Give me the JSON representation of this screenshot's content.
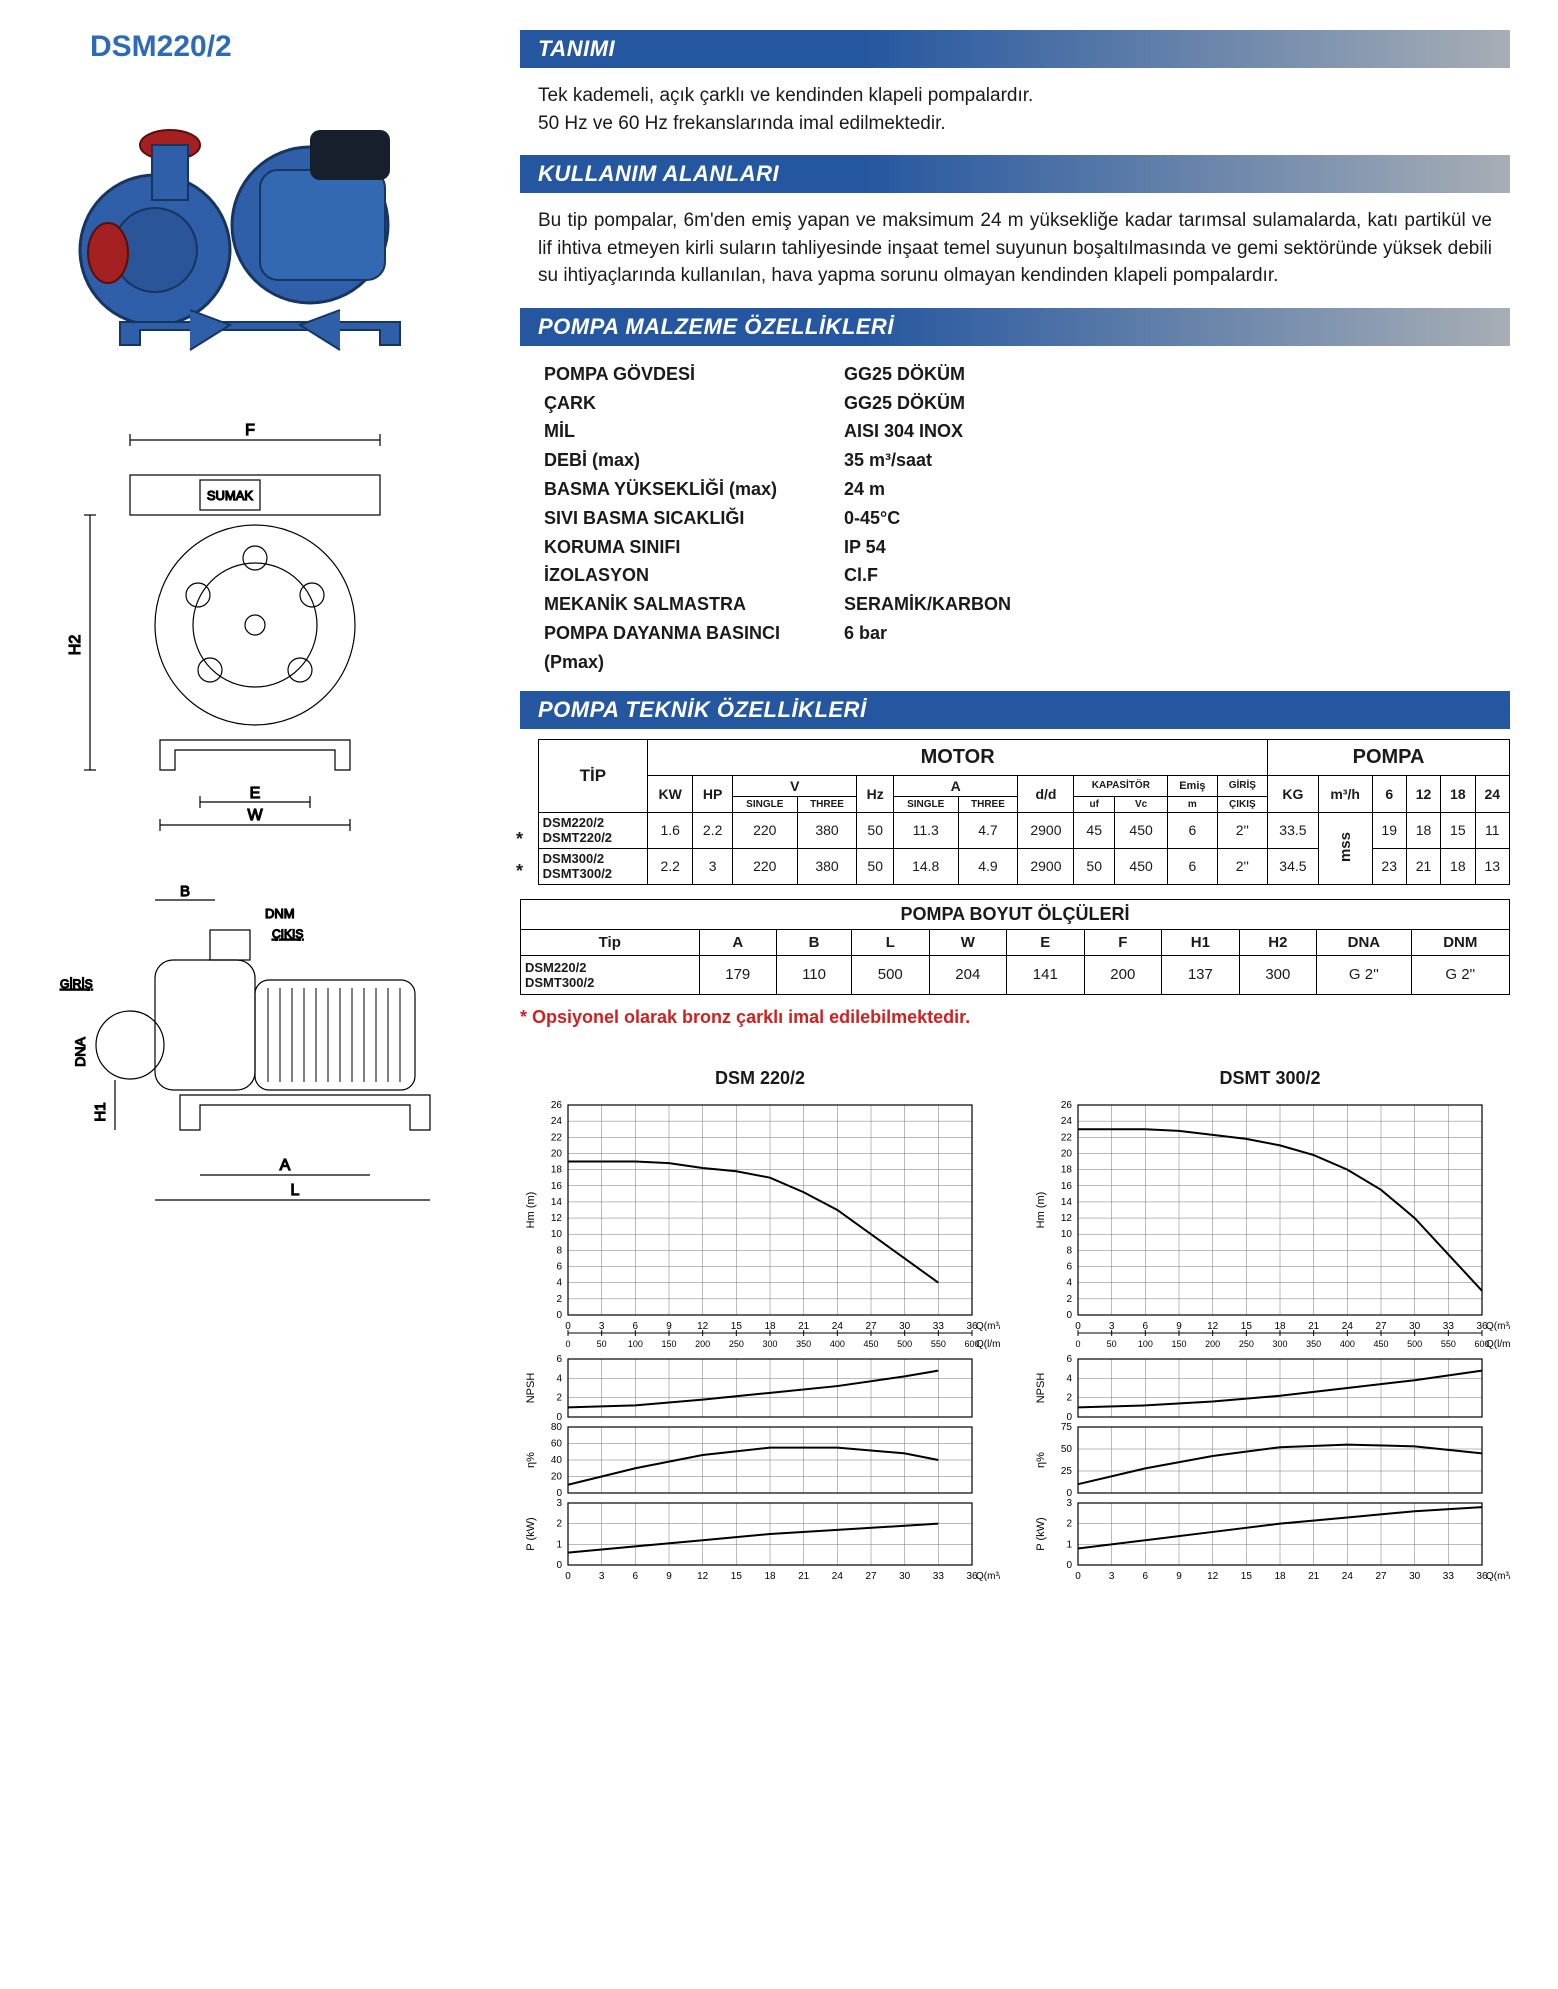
{
  "product_code": "DSM220/2",
  "sections": {
    "definition_title": "TANIMI",
    "definition_body": "Tek kademeli, açık çarklı ve kendinden klapeli pompalardır.\n50 Hz ve 60 Hz frekanslarında imal edilmektedir.",
    "usage_title": "KULLANIM ALANLARI",
    "usage_body": "Bu tip pompalar, 6m'den emiş yapan ve maksimum 24 m yüksekliğe kadar tarımsal sulamalarda, katı partikül ve lif ihtiva etmeyen kirli suların tahliyesinde inşaat temel suyunun boşaltılmasında ve gemi sektöründe yüksek debili su ihtiyaçlarında kullanılan, hava yapma sorunu olmayan kendinden klapeli pompalardır.",
    "material_title": "POMPA MALZEME ÖZELLİKLERİ",
    "tech_title": "POMPA TEKNİK ÖZELLİKLERİ"
  },
  "materials": [
    {
      "label": "POMPA GÖVDESİ",
      "value": "GG25 DÖKÜM"
    },
    {
      "label": "ÇARK",
      "value": "GG25 DÖKÜM"
    },
    {
      "label": "MİL",
      "value": "AISI 304 INOX"
    },
    {
      "label": "DEBİ (max)",
      "value": "35 m³/saat"
    },
    {
      "label": "BASMA YÜKSEKLİĞİ (max)",
      "value": "24 m"
    },
    {
      "label": "SIVI BASMA SICAKLIĞI",
      "value": "0-45°C"
    },
    {
      "label": "KORUMA SINIFI",
      "value": "IP 54"
    },
    {
      "label": "İZOLASYON",
      "value": "Cl.F"
    },
    {
      "label": "MEKANİK SALMASTRA",
      "value": "SERAMİK/KARBON"
    },
    {
      "label": "POMPA DAYANMA BASINCI (Pmax)",
      "value": "6 bar"
    }
  ],
  "tech_table": {
    "group_motor": "MOTOR",
    "group_pompa": "POMPA",
    "headers": {
      "tip": "TİP",
      "kw": "KW",
      "hp": "HP",
      "v": "V",
      "hz": "Hz",
      "a": "A",
      "dd": "d/d",
      "kap": "KAPASİTÖR",
      "emis": "Emiş",
      "giris": "GİRİŞ",
      "kg": "KG",
      "m3h": "m³/h",
      "mss": "mss",
      "single": "SINGLE",
      "three": "THREE",
      "uf": "uf",
      "vc": "Vc",
      "m": "m",
      "cikis": "ÇIKIŞ",
      "q6": "6",
      "q12": "12",
      "q18": "18",
      "q24": "24"
    },
    "rows": [
      {
        "tip": "DSM220/2\nDSMT220/2",
        "kw": "1.6",
        "hp": "2.2",
        "vs": "220",
        "vt": "380",
        "hz": "50",
        "as": "11.3",
        "at": "4.7",
        "dd": "2900",
        "uf": "45",
        "vc": "450",
        "emis": "6",
        "gc": "2''",
        "kg": "33.5",
        "q6": "19",
        "q12": "18",
        "q18": "15",
        "q24": "11"
      },
      {
        "tip": "DSM300/2\nDSMT300/2",
        "kw": "2.2",
        "hp": "3",
        "vs": "220",
        "vt": "380",
        "hz": "50",
        "as": "14.8",
        "at": "4.9",
        "dd": "2900",
        "uf": "50",
        "vc": "450",
        "emis": "6",
        "gc": "2''",
        "kg": "34.5",
        "q6": "23",
        "q12": "21",
        "q18": "18",
        "q24": "13"
      }
    ]
  },
  "dim_table": {
    "title": "POMPA BOYUT ÖLÇÜLERİ",
    "headers": [
      "Tip",
      "A",
      "B",
      "L",
      "W",
      "E",
      "F",
      "H1",
      "H2",
      "DNA",
      "DNM"
    ],
    "row_label": "DSM220/2\nDSMT300/2",
    "values": [
      "179",
      "110",
      "500",
      "204",
      "141",
      "200",
      "137",
      "300",
      "G 2''",
      "G 2'' "
    ]
  },
  "note": "* Opsiyonel olarak bronz çarklı imal edilebilmektedir.",
  "charts": {
    "c1_title": "DSM 220/2",
    "c2_title": "DSMT 300/2",
    "colors": {
      "line": "#000",
      "grid": "#555",
      "bg": "#fff"
    },
    "hm": {
      "xlim": [
        0,
        36
      ],
      "xtick": 3,
      "ylim": [
        0,
        26
      ],
      "ytick": 2,
      "xlabel": "Q(m³/h)",
      "ylabel": "Hm  (m)",
      "x2_label": "Q(l/min)",
      "x2_ticks": [
        0,
        50,
        100,
        150,
        200,
        250,
        300,
        350,
        400,
        450,
        500,
        550,
        600
      ],
      "series1": [
        [
          0,
          19
        ],
        [
          3,
          19
        ],
        [
          6,
          19
        ],
        [
          9,
          18.8
        ],
        [
          12,
          18.2
        ],
        [
          15,
          17.8
        ],
        [
          18,
          17
        ],
        [
          21,
          15.2
        ],
        [
          24,
          13
        ],
        [
          27,
          10
        ],
        [
          30,
          7
        ],
        [
          33,
          4
        ]
      ],
      "series2": [
        [
          0,
          23
        ],
        [
          3,
          23
        ],
        [
          6,
          23
        ],
        [
          9,
          22.8
        ],
        [
          12,
          22.3
        ],
        [
          15,
          21.8
        ],
        [
          18,
          21
        ],
        [
          21,
          19.8
        ],
        [
          24,
          18
        ],
        [
          27,
          15.5
        ],
        [
          30,
          12
        ],
        [
          33,
          7.5
        ],
        [
          36,
          3
        ]
      ]
    },
    "npsh": {
      "ylim": [
        0,
        6
      ],
      "ytick": 2,
      "ylabel": "NPSH",
      "series1": [
        [
          0,
          1
        ],
        [
          6,
          1.2
        ],
        [
          12,
          1.8
        ],
        [
          18,
          2.5
        ],
        [
          24,
          3.2
        ],
        [
          30,
          4.2
        ],
        [
          33,
          4.8
        ]
      ],
      "series2": [
        [
          0,
          1
        ],
        [
          6,
          1.2
        ],
        [
          12,
          1.6
        ],
        [
          18,
          2.2
        ],
        [
          24,
          3
        ],
        [
          30,
          3.8
        ],
        [
          36,
          4.8
        ]
      ]
    },
    "eff": {
      "ylim": [
        0,
        80
      ],
      "ytick": 20,
      "ylabel": "η%",
      "series1": [
        [
          0,
          10
        ],
        [
          6,
          30
        ],
        [
          12,
          46
        ],
        [
          18,
          55
        ],
        [
          24,
          55
        ],
        [
          30,
          48
        ],
        [
          33,
          40
        ]
      ],
      "eff2_ylim": [
        0,
        75
      ],
      "eff2_ytick": 25,
      "series2": [
        [
          0,
          10
        ],
        [
          6,
          28
        ],
        [
          12,
          42
        ],
        [
          18,
          52
        ],
        [
          24,
          55
        ],
        [
          30,
          53
        ],
        [
          36,
          45
        ]
      ]
    },
    "pow": {
      "ylim": [
        0,
        3
      ],
      "ytick": 1,
      "ylabel": "P  (kW)",
      "series1": [
        [
          0,
          0.6
        ],
        [
          6,
          0.9
        ],
        [
          12,
          1.2
        ],
        [
          18,
          1.5
        ],
        [
          24,
          1.7
        ],
        [
          30,
          1.9
        ],
        [
          33,
          2
        ]
      ],
      "series2": [
        [
          0,
          0.8
        ],
        [
          6,
          1.2
        ],
        [
          12,
          1.6
        ],
        [
          18,
          2
        ],
        [
          24,
          2.3
        ],
        [
          30,
          2.6
        ],
        [
          36,
          2.8
        ]
      ]
    }
  },
  "drawings": {
    "labels": {
      "F": "F",
      "E": "E",
      "W": "W",
      "H2": "H2",
      "B": "B",
      "DNM": "DNM",
      "CIKIS": "ÇIKIŞ",
      "GIRIS": "GİRİŞ",
      "DNA": "DNA",
      "H1": "H1",
      "A": "A",
      "L": "L",
      "brand": "SUMAK"
    }
  }
}
